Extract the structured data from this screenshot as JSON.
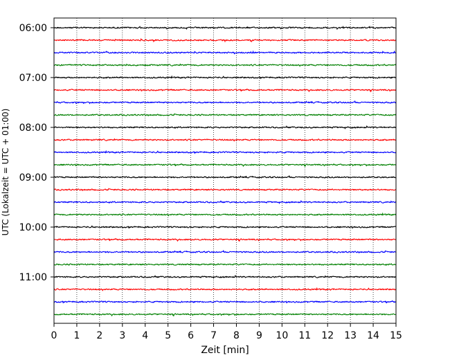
{
  "chart_data": {
    "type": "line",
    "title": "",
    "xlabel": "Zeit  [min]",
    "ylabel": "UTC (Lokalzeit = UTC + 01:00)",
    "xlim": [
      0,
      15
    ],
    "x_ticks": [
      0,
      1,
      2,
      3,
      4,
      5,
      6,
      7,
      8,
      9,
      10,
      11,
      12,
      13,
      14,
      15
    ],
    "y_tick_labels": [
      "06:00",
      "07:00",
      "08:00",
      "09:00",
      "10:00",
      "11:00"
    ],
    "grid": "vertical dotted",
    "trace_interval_minutes": 15,
    "trace_start": "06:00",
    "trace_count": 24,
    "trace_colors": [
      "#000000",
      "#ff0000",
      "#0000ff",
      "#008000"
    ]
  }
}
